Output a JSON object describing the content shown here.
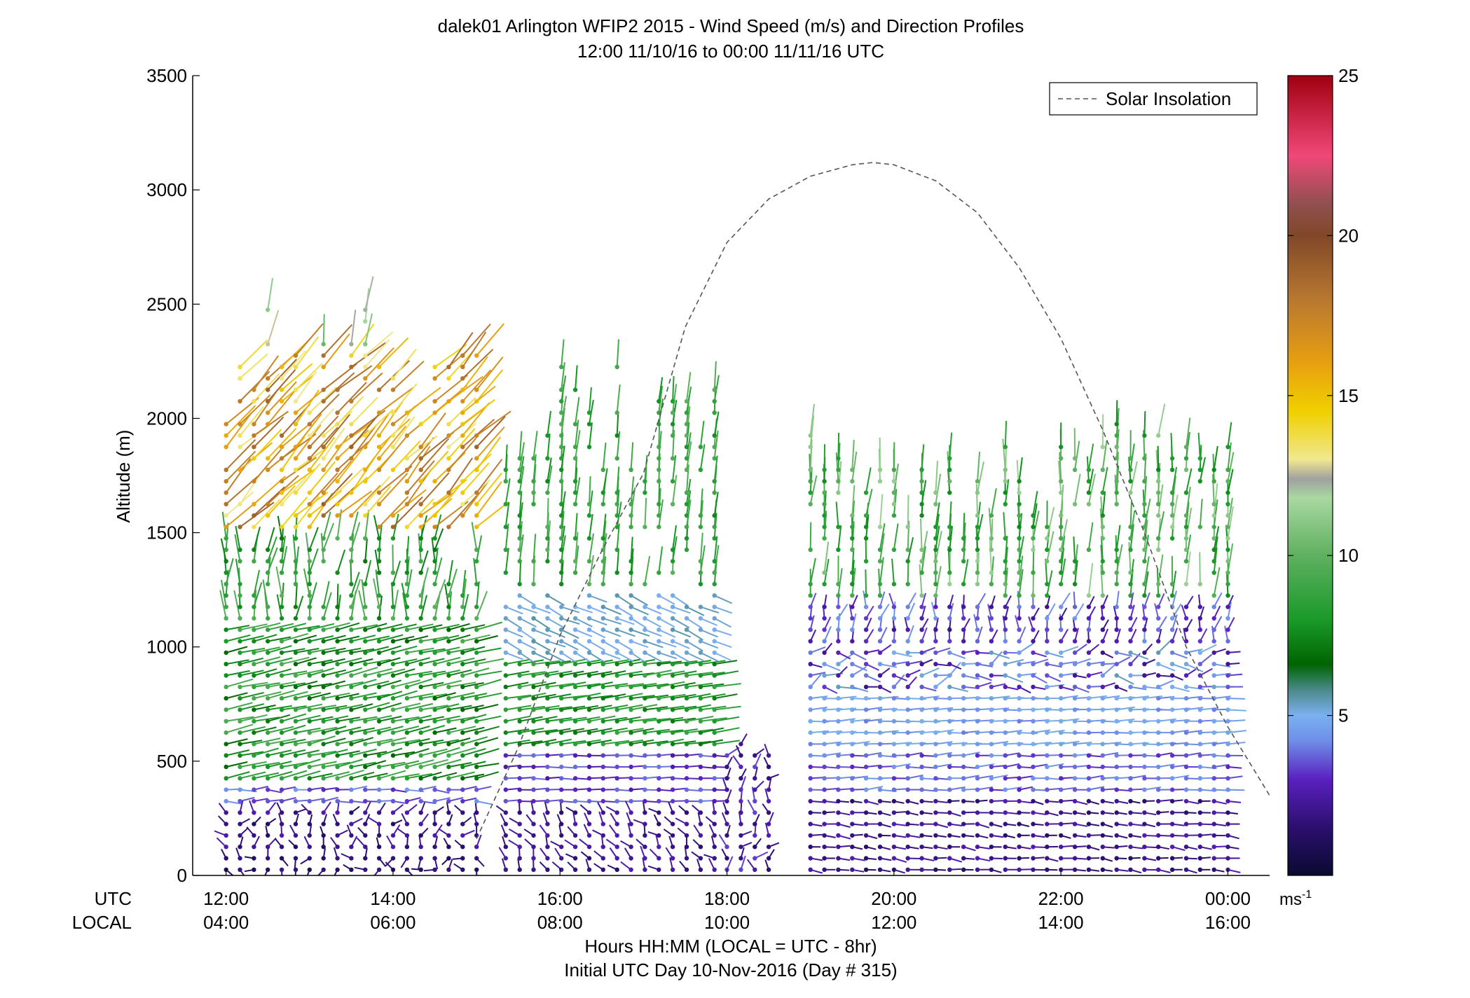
{
  "chart_data": {
    "type": "scatter",
    "title": "dalek01 Arlington WFIP2 2015 - Wind Speed (m/s) and Direction Profiles",
    "subtitle": "12:00 11/10/16 to 00:00 11/11/16  UTC",
    "ylabel": "Altitude (m)",
    "xlabel": "Hours HH:MM  (LOCAL = UTC - 8hr)",
    "xlabel2": "Initial UTC Day 10-Nov-2016 (Day # 315)",
    "xrange_utc_hours": [
      11.6,
      24.5
    ],
    "ylim": [
      0,
      3500
    ],
    "yticks": [
      0,
      500,
      1000,
      1500,
      2000,
      2500,
      3000,
      3500
    ],
    "xticks_utc": [
      "12:00",
      "14:00",
      "16:00",
      "18:00",
      "20:00",
      "22:00",
      "00:00"
    ],
    "xticks_local": [
      "04:00",
      "06:00",
      "08:00",
      "10:00",
      "12:00",
      "14:00",
      "16:00"
    ],
    "xtick_hours": [
      12,
      14,
      16,
      18,
      20,
      22,
      24
    ],
    "row_label_utc": "UTC",
    "row_label_local": "LOCAL",
    "legend": {
      "label": "Solar Insolation",
      "position": "top-right",
      "style": "dashed",
      "color": "#555555"
    },
    "colorbar": {
      "min": 0,
      "max": 25,
      "ticks": [
        5,
        10,
        15,
        20,
        25
      ],
      "unit": "ms",
      "unit_exp": "-1",
      "stops": [
        [
          0,
          "#0a0a30"
        ],
        [
          1.5,
          "#2b0f6e"
        ],
        [
          3,
          "#5a20c0"
        ],
        [
          4.2,
          "#6e8ee8"
        ],
        [
          5,
          "#7ab0f0"
        ],
        [
          5.8,
          "#4a8a8a"
        ],
        [
          6.6,
          "#006400"
        ],
        [
          8,
          "#1a9a2a"
        ],
        [
          10,
          "#5fb060"
        ],
        [
          11.8,
          "#a8d8a0"
        ],
        [
          12.4,
          "#a0a0a0"
        ],
        [
          13,
          "#f0e890"
        ],
        [
          14.5,
          "#f0d000"
        ],
        [
          16,
          "#e8a010"
        ],
        [
          18,
          "#b87830"
        ],
        [
          20,
          "#804828"
        ],
        [
          21,
          "#905050"
        ],
        [
          22.5,
          "#f04878"
        ],
        [
          25,
          "#a00010"
        ]
      ]
    },
    "solar_insolation_curve": {
      "x_hours": [
        17.0,
        17.5,
        18.0,
        18.5,
        19.0,
        19.5,
        19.75,
        20.0,
        20.5,
        21.0,
        21.5,
        22.0,
        22.5,
        23.0,
        23.5,
        24.0,
        24.5
      ],
      "y_altitude": [
        1760,
        2400,
        2770,
        2960,
        3060,
        3110,
        3120,
        3110,
        3040,
        2900,
        2660,
        2350,
        1950,
        1500,
        1000,
        650,
        350
      ]
    },
    "solar_insolation_curve_early": {
      "x_hours": [
        15.0,
        15.5,
        16.0,
        16.5,
        17.0
      ],
      "y_altitude": [
        160,
        560,
        1050,
        1420,
        1760
      ]
    },
    "profile_segments": [
      {
        "t0": 12.0,
        "t1": 15.0,
        "ztop": 2550,
        "regime": "morning"
      },
      {
        "t0": 15.35,
        "t1": 18.0,
        "ztop": 2270,
        "regime": "day"
      },
      {
        "t0": 18.0,
        "t1": 18.6,
        "ztop": 620,
        "regime": "low"
      },
      {
        "t0": 19.0,
        "t1": 24.0,
        "ztop": 1980,
        "regime": "afternoon"
      }
    ]
  }
}
